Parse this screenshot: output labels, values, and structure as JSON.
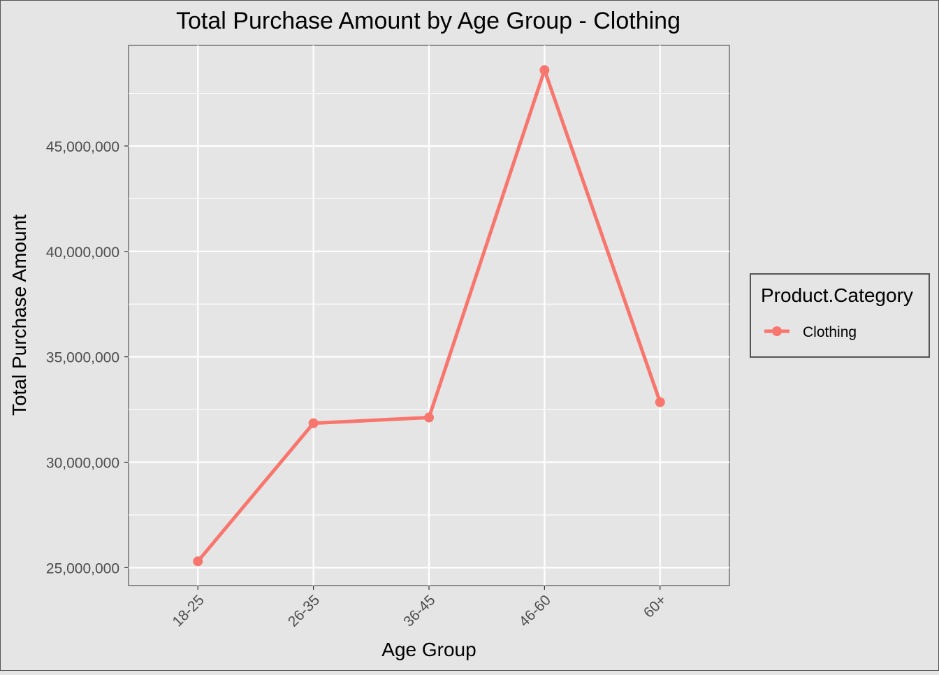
{
  "chart_data": {
    "type": "line",
    "title": "Total Purchase Amount by Age Group - Clothing",
    "xlabel": "Age Group",
    "ylabel": "Total Purchase Amount",
    "categories": [
      "18-25",
      "26-35",
      "36-45",
      "46-60",
      "60+"
    ],
    "series": [
      {
        "name": "Clothing",
        "values": [
          25300000,
          31850000,
          32120000,
          48600000,
          32850000
        ],
        "color": "#f8766d"
      }
    ],
    "ylim": [
      24150000,
      49770000
    ],
    "y_ticks": [
      25000000,
      30000000,
      35000000,
      40000000,
      45000000
    ],
    "y_tick_labels": [
      "25,000,000",
      "30,000,000",
      "35,000,000",
      "40,000,000",
      "45,000,000"
    ],
    "grid": true,
    "legend": {
      "title": "Product.Category",
      "position": "right"
    }
  }
}
